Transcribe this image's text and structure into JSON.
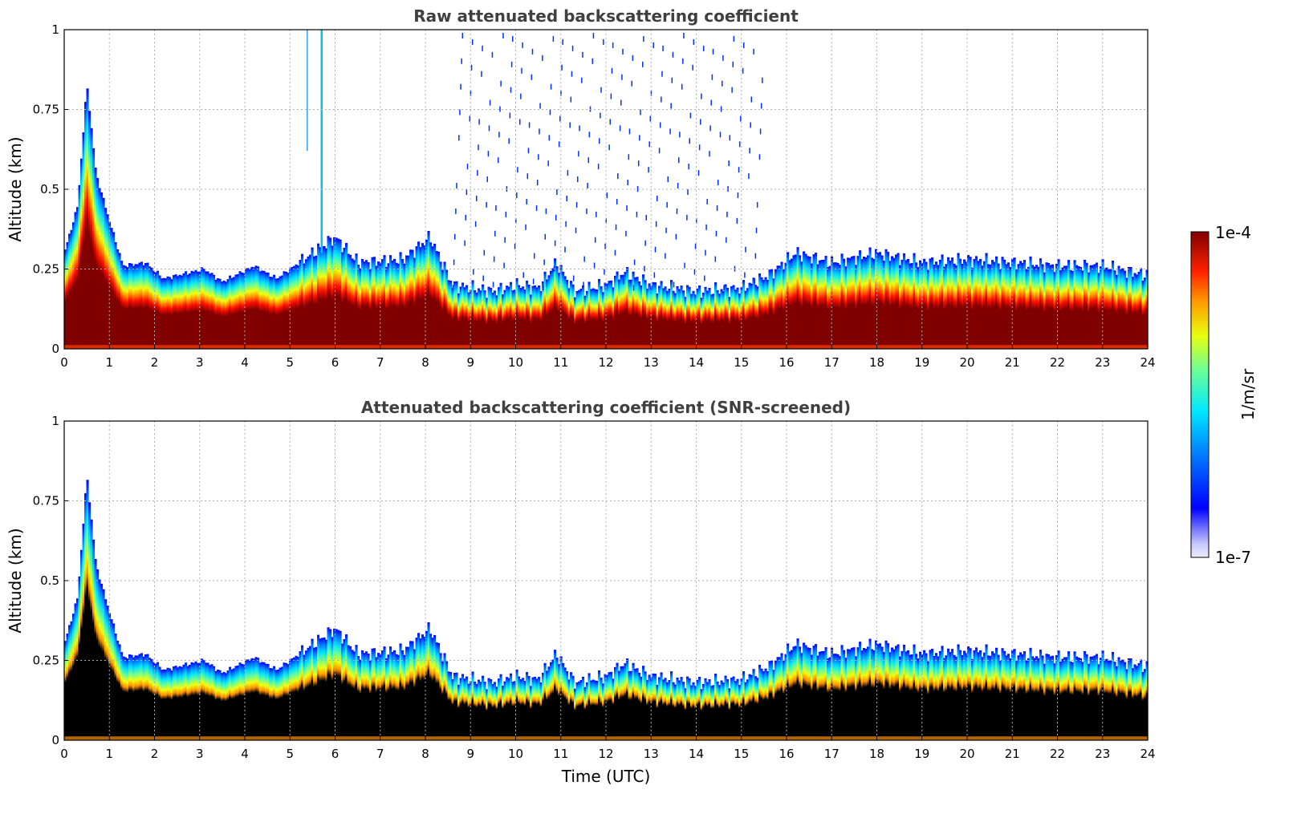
{
  "chart_data": [
    {
      "type": "heatmap",
      "title": "Raw attenuated backscattering coefficient",
      "xlabel": "",
      "ylabel": "Altitude (km)",
      "xlim": [
        0,
        24
      ],
      "ylim": [
        0,
        1
      ],
      "xticks": [
        "0",
        "1",
        "2",
        "3",
        "4",
        "5",
        "6",
        "7",
        "8",
        "9",
        "10",
        "11",
        "12",
        "13",
        "14",
        "15",
        "16",
        "17",
        "18",
        "19",
        "20",
        "21",
        "22",
        "23",
        "24"
      ],
      "yticks": [
        "0",
        "0.25",
        "0.5",
        "0.75",
        "1"
      ],
      "grid": true,
      "colormap": "jet",
      "layer_top_km": [
        {
          "t": 0.0,
          "top": 0.3
        },
        {
          "t": 0.3,
          "top": 0.45
        },
        {
          "t": 0.5,
          "top": 0.83
        },
        {
          "t": 0.7,
          "top": 0.55
        },
        {
          "t": 1.0,
          "top": 0.4
        },
        {
          "t": 1.3,
          "top": 0.26
        },
        {
          "t": 1.8,
          "top": 0.27
        },
        {
          "t": 2.2,
          "top": 0.22
        },
        {
          "t": 3.1,
          "top": 0.25
        },
        {
          "t": 3.5,
          "top": 0.21
        },
        {
          "t": 4.2,
          "top": 0.26
        },
        {
          "t": 4.7,
          "top": 0.22
        },
        {
          "t": 5.2,
          "top": 0.27
        },
        {
          "t": 5.5,
          "top": 0.3
        },
        {
          "t": 6.0,
          "top": 0.35
        },
        {
          "t": 6.5,
          "top": 0.27
        },
        {
          "t": 7.5,
          "top": 0.28
        },
        {
          "t": 8.1,
          "top": 0.35
        },
        {
          "t": 8.6,
          "top": 0.2
        },
        {
          "t": 9.5,
          "top": 0.18
        },
        {
          "t": 10.0,
          "top": 0.2
        },
        {
          "t": 10.5,
          "top": 0.19
        },
        {
          "t": 10.9,
          "top": 0.27
        },
        {
          "t": 11.3,
          "top": 0.18
        },
        {
          "t": 12.0,
          "top": 0.2
        },
        {
          "t": 12.4,
          "top": 0.24
        },
        {
          "t": 13.0,
          "top": 0.2
        },
        {
          "t": 14.0,
          "top": 0.18
        },
        {
          "t": 15.0,
          "top": 0.19
        },
        {
          "t": 15.6,
          "top": 0.23
        },
        {
          "t": 16.2,
          "top": 0.3
        },
        {
          "t": 17.0,
          "top": 0.27
        },
        {
          "t": 18.0,
          "top": 0.3
        },
        {
          "t": 19.0,
          "top": 0.27
        },
        {
          "t": 20.0,
          "top": 0.28
        },
        {
          "t": 21.0,
          "top": 0.27
        },
        {
          "t": 22.0,
          "top": 0.26
        },
        {
          "t": 23.0,
          "top": 0.26
        },
        {
          "t": 24.0,
          "top": 0.23
        }
      ]
    },
    {
      "type": "heatmap",
      "title": "Attenuated backscattering coefficient (SNR-screened)",
      "xlabel": "Time (UTC)",
      "ylabel": "Altitude (km)",
      "xlim": [
        0,
        24
      ],
      "ylim": [
        0,
        1
      ],
      "xticks": [
        "0",
        "1",
        "2",
        "3",
        "4",
        "5",
        "6",
        "7",
        "8",
        "9",
        "10",
        "11",
        "12",
        "13",
        "14",
        "15",
        "16",
        "17",
        "18",
        "19",
        "20",
        "21",
        "22",
        "23",
        "24"
      ],
      "yticks": [
        "0",
        "0.25",
        "0.5",
        "0.75",
        "1"
      ],
      "grid": true,
      "colormap": "jet",
      "note_values": "same aerosol layer as top panel; saturated low-SNR core screened"
    }
  ],
  "colorbar": {
    "label": "1/m/sr",
    "max_label": "1e-4",
    "min_label": "1e-7",
    "colors": [
      "#e8e8ff",
      "#c0c0ff",
      "#8080ff",
      "#0000ff",
      "#0080ff",
      "#00ffff",
      "#80ff80",
      "#ffff00",
      "#ff8000",
      "#ff0000",
      "#800000"
    ]
  }
}
